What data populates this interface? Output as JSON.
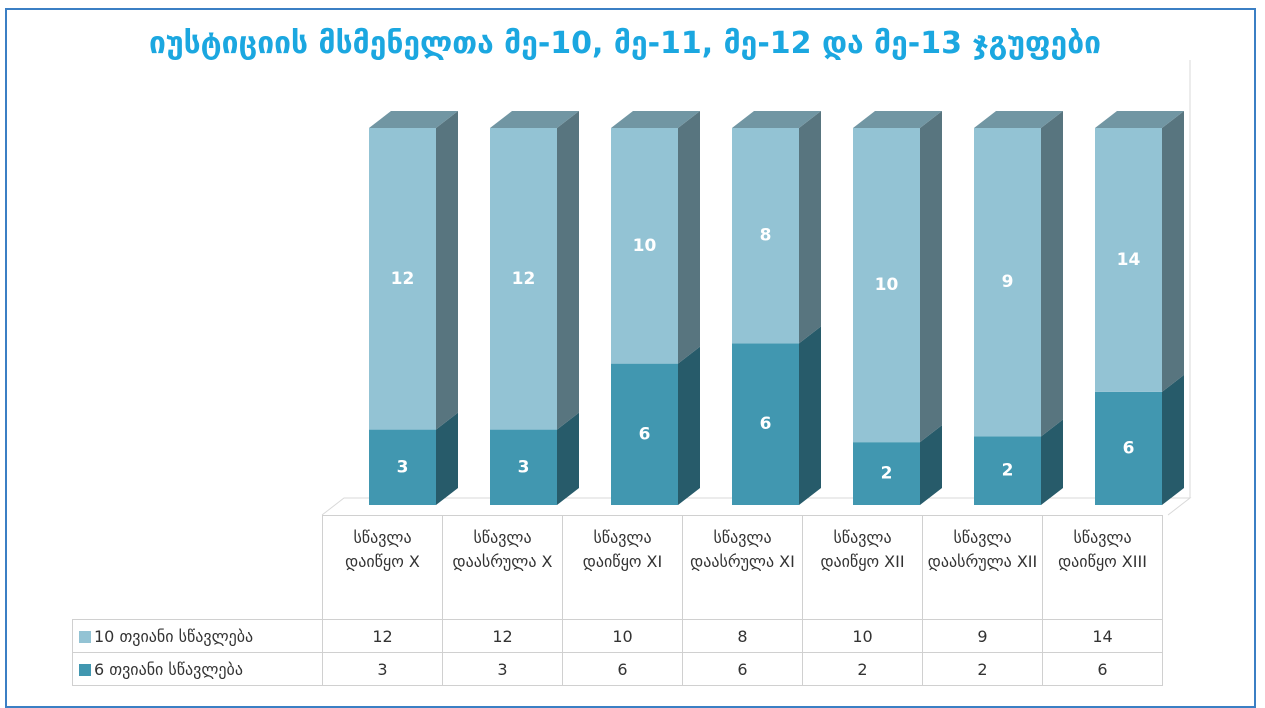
{
  "chart_data": {
    "type": "bar",
    "stacking": "percent",
    "data_table": true,
    "title": "იუსტიციის მსმენელთა მე-10, მე-11, მე-12 და მე-13 ჯგუფები",
    "categories": [
      "სწავლა დაიწყო X",
      "სწავლა დაასრულა X",
      "სწავლა დაიწყო XI",
      "სწავლა დაასრულა XI",
      "სწავლა დაიწყო XII",
      "სწავლა დაასრულა XII",
      "სწავლა დაიწყო XIII"
    ],
    "series": [
      {
        "name": "10 თვიანი სწავლება",
        "color": "#93c3d4",
        "values": [
          12,
          12,
          10,
          8,
          10,
          9,
          14
        ]
      },
      {
        "name": "6 თვიანი სწავლება",
        "color": "#4197b0",
        "values": [
          3,
          3,
          6,
          6,
          2,
          2,
          6
        ]
      }
    ]
  }
}
